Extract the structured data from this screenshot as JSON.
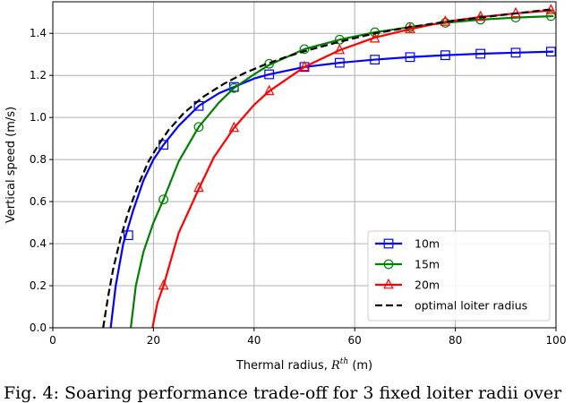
{
  "caption": "Fig. 4: Soaring performance trade-off for 3 fixed loiter radii over",
  "chart_data": {
    "type": "line",
    "title": "",
    "xlabel": "Thermal radius, R^th (m)",
    "xlabel_main": "Thermal radius, ",
    "xlabel_var": "R",
    "xlabel_sup": "th",
    "xlabel_unit": " (m)",
    "ylabel": "Vertical speed (m/s)",
    "xlim": [
      0,
      100
    ],
    "ylim": [
      0,
      1.55
    ],
    "xticks": [
      0,
      20,
      40,
      60,
      80,
      100
    ],
    "yticks": [
      0.0,
      0.2,
      0.4,
      0.6,
      0.8,
      1.0,
      1.2,
      1.4
    ],
    "ytick_labels": [
      "0.0",
      "0.2",
      "0.4",
      "0.6",
      "0.8",
      "1.0",
      "1.2",
      "1.4"
    ],
    "grid": true,
    "legend_position": "lower-right",
    "series": [
      {
        "name": "10m",
        "color": "#0000ff",
        "marker": "square",
        "linestyle": "solid",
        "x": [
          11.5,
          12.5,
          14,
          16,
          18,
          20,
          22,
          25,
          29,
          33,
          36,
          40,
          43,
          50,
          57,
          64,
          71,
          78,
          85,
          92,
          99.5
        ],
        "y": [
          0.0,
          0.2,
          0.4,
          0.56,
          0.7,
          0.8,
          0.87,
          0.96,
          1.055,
          1.115,
          1.145,
          1.185,
          1.205,
          1.24,
          1.26,
          1.275,
          1.287,
          1.296,
          1.303,
          1.308,
          1.313
        ],
        "markers_x": [
          15,
          22,
          29,
          36,
          43,
          50,
          57,
          64,
          71,
          78,
          85,
          92,
          99
        ],
        "markers_y": [
          0.44,
          0.87,
          1.055,
          1.145,
          1.205,
          1.24,
          1.26,
          1.275,
          1.287,
          1.296,
          1.303,
          1.308,
          1.313
        ]
      },
      {
        "name": "15m",
        "color": "#008000",
        "marker": "circle",
        "linestyle": "solid",
        "x": [
          15.5,
          16.5,
          18,
          20,
          22,
          25,
          29,
          33,
          36,
          40,
          43,
          50,
          57,
          64,
          71,
          78,
          85,
          92,
          99.5
        ],
        "y": [
          0.0,
          0.2,
          0.36,
          0.5,
          0.61,
          0.79,
          0.955,
          1.07,
          1.14,
          1.205,
          1.25,
          1.325,
          1.37,
          1.405,
          1.43,
          1.45,
          1.465,
          1.475,
          1.482
        ],
        "markers_x": [
          22,
          29,
          36,
          43,
          50,
          57,
          64,
          71,
          78,
          85,
          92,
          99
        ],
        "markers_y": [
          0.61,
          0.955,
          1.14,
          1.255,
          1.325,
          1.37,
          1.405,
          1.43,
          1.45,
          1.465,
          1.475,
          1.482
        ]
      },
      {
        "name": "20m",
        "color": "#ff0000",
        "marker": "triangle",
        "linestyle": "solid",
        "x": [
          19.8,
          20.8,
          22,
          25,
          29,
          32,
          36,
          40,
          43,
          50,
          57,
          64,
          71,
          78,
          85,
          92,
          99.5
        ],
        "y": [
          0.0,
          0.12,
          0.2,
          0.45,
          0.66,
          0.81,
          0.95,
          1.06,
          1.125,
          1.24,
          1.32,
          1.38,
          1.42,
          1.455,
          1.478,
          1.495,
          1.51
        ],
        "markers_x": [
          22,
          29,
          36,
          43,
          50,
          57,
          64,
          71,
          78,
          85,
          92,
          99
        ],
        "markers_y": [
          0.2,
          0.665,
          0.95,
          1.125,
          1.24,
          1.32,
          1.375,
          1.42,
          1.455,
          1.478,
          1.495,
          1.51
        ]
      },
      {
        "name": "optimal loiter radius",
        "color": "#000000",
        "marker": "none",
        "linestyle": "dashed",
        "x": [
          10,
          11,
          12,
          13.5,
          15,
          17,
          19,
          21,
          23,
          26,
          30,
          34,
          38,
          42,
          46,
          50,
          57,
          64,
          71,
          78,
          85,
          92,
          99.5
        ],
        "y": [
          0.0,
          0.15,
          0.28,
          0.43,
          0.55,
          0.68,
          0.79,
          0.87,
          0.94,
          1.02,
          1.1,
          1.16,
          1.21,
          1.25,
          1.285,
          1.315,
          1.36,
          1.4,
          1.43,
          1.455,
          1.475,
          1.495,
          1.515
        ],
        "markers_x": [],
        "markers_y": []
      }
    ]
  }
}
